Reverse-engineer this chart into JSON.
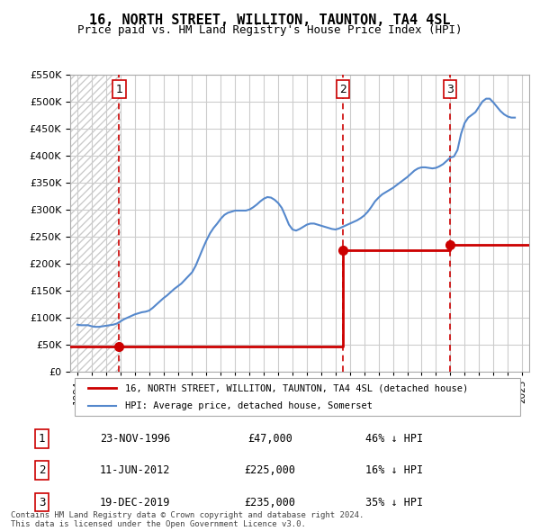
{
  "title": "16, NORTH STREET, WILLITON, TAUNTON, TA4 4SL",
  "subtitle": "Price paid vs. HM Land Registry's House Price Index (HPI)",
  "hpi_label": "HPI: Average price, detached house, Somerset",
  "property_label": "16, NORTH STREET, WILLITON, TAUNTON, TA4 4SL (detached house)",
  "sale_dates": [
    "1996-11-23",
    "2012-06-11",
    "2019-12-19"
  ],
  "sale_prices": [
    47000,
    225000,
    235000
  ],
  "sale_labels": [
    "1",
    "2",
    "3"
  ],
  "sale_info": [
    {
      "label": "1",
      "date": "23-NOV-1996",
      "price": "£47,000",
      "note": "46% ↓ HPI"
    },
    {
      "label": "2",
      "date": "11-JUN-2012",
      "price": "£225,000",
      "note": "16% ↓ HPI"
    },
    {
      "label": "3",
      "date": "19-DEC-2019",
      "price": "£235,000",
      "note": "35% ↓ HPI"
    }
  ],
  "ylim": [
    0,
    550000
  ],
  "xlim_start": 1993.5,
  "xlim_end": 2025.5,
  "property_color": "#cc0000",
  "hpi_color": "#5588cc",
  "grid_color": "#cccccc",
  "hatch_color": "#dddddd",
  "vline_color": "#cc0000",
  "footer": "Contains HM Land Registry data © Crown copyright and database right 2024.\nThis data is licensed under the Open Government Licence v3.0.",
  "hpi_data": {
    "years": [
      1994,
      1994.25,
      1994.5,
      1994.75,
      1995,
      1995.25,
      1995.5,
      1995.75,
      1996,
      1996.25,
      1996.5,
      1996.75,
      1997,
      1997.25,
      1997.5,
      1997.75,
      1998,
      1998.25,
      1998.5,
      1998.75,
      1999,
      1999.25,
      1999.5,
      1999.75,
      2000,
      2000.25,
      2000.5,
      2000.75,
      2001,
      2001.25,
      2001.5,
      2001.75,
      2002,
      2002.25,
      2002.5,
      2002.75,
      2003,
      2003.25,
      2003.5,
      2003.75,
      2004,
      2004.25,
      2004.5,
      2004.75,
      2005,
      2005.25,
      2005.5,
      2005.75,
      2006,
      2006.25,
      2006.5,
      2006.75,
      2007,
      2007.25,
      2007.5,
      2007.75,
      2008,
      2008.25,
      2008.5,
      2008.75,
      2009,
      2009.25,
      2009.5,
      2009.75,
      2010,
      2010.25,
      2010.5,
      2010.75,
      2011,
      2011.25,
      2011.5,
      2011.75,
      2012,
      2012.25,
      2012.5,
      2012.75,
      2013,
      2013.25,
      2013.5,
      2013.75,
      2014,
      2014.25,
      2014.5,
      2014.75,
      2015,
      2015.25,
      2015.5,
      2015.75,
      2016,
      2016.25,
      2016.5,
      2016.75,
      2017,
      2017.25,
      2017.5,
      2017.75,
      2018,
      2018.25,
      2018.5,
      2018.75,
      2019,
      2019.25,
      2019.5,
      2019.75,
      2020,
      2020.25,
      2020.5,
      2020.75,
      2021,
      2021.25,
      2021.5,
      2021.75,
      2022,
      2022.25,
      2022.5,
      2022.75,
      2023,
      2023.25,
      2023.5,
      2023.75,
      2024,
      2024.25,
      2024.5
    ],
    "values": [
      87000,
      86000,
      86000,
      86000,
      84000,
      83000,
      83000,
      84000,
      85000,
      86000,
      87000,
      89000,
      93000,
      97000,
      100000,
      103000,
      106000,
      108000,
      110000,
      111000,
      113000,
      118000,
      124000,
      130000,
      136000,
      141000,
      147000,
      153000,
      158000,
      163000,
      170000,
      177000,
      184000,
      196000,
      212000,
      228000,
      243000,
      256000,
      266000,
      274000,
      283000,
      290000,
      294000,
      296000,
      298000,
      298000,
      298000,
      298000,
      300000,
      304000,
      309000,
      315000,
      320000,
      323000,
      322000,
      318000,
      312000,
      303000,
      288000,
      272000,
      263000,
      261000,
      264000,
      268000,
      272000,
      274000,
      274000,
      272000,
      270000,
      268000,
      266000,
      264000,
      263000,
      265000,
      268000,
      271000,
      274000,
      277000,
      280000,
      284000,
      289000,
      296000,
      305000,
      315000,
      322000,
      328000,
      332000,
      336000,
      340000,
      345000,
      350000,
      355000,
      360000,
      366000,
      372000,
      376000,
      378000,
      378000,
      377000,
      376000,
      377000,
      380000,
      384000,
      390000,
      396000,
      398000,
      410000,
      440000,
      460000,
      470000,
      475000,
      480000,
      490000,
      500000,
      505000,
      505000,
      498000,
      490000,
      482000,
      476000,
      472000,
      470000,
      470000
    ]
  },
  "property_line": {
    "years": [
      1993.5,
      1996.9,
      1996.9,
      2012.45,
      2012.45,
      2019.96,
      2019.96,
      2025.5
    ],
    "values": [
      47000,
      47000,
      47000,
      47000,
      225000,
      225000,
      235000,
      235000
    ]
  },
  "background_hatch_end": 1997.0
}
